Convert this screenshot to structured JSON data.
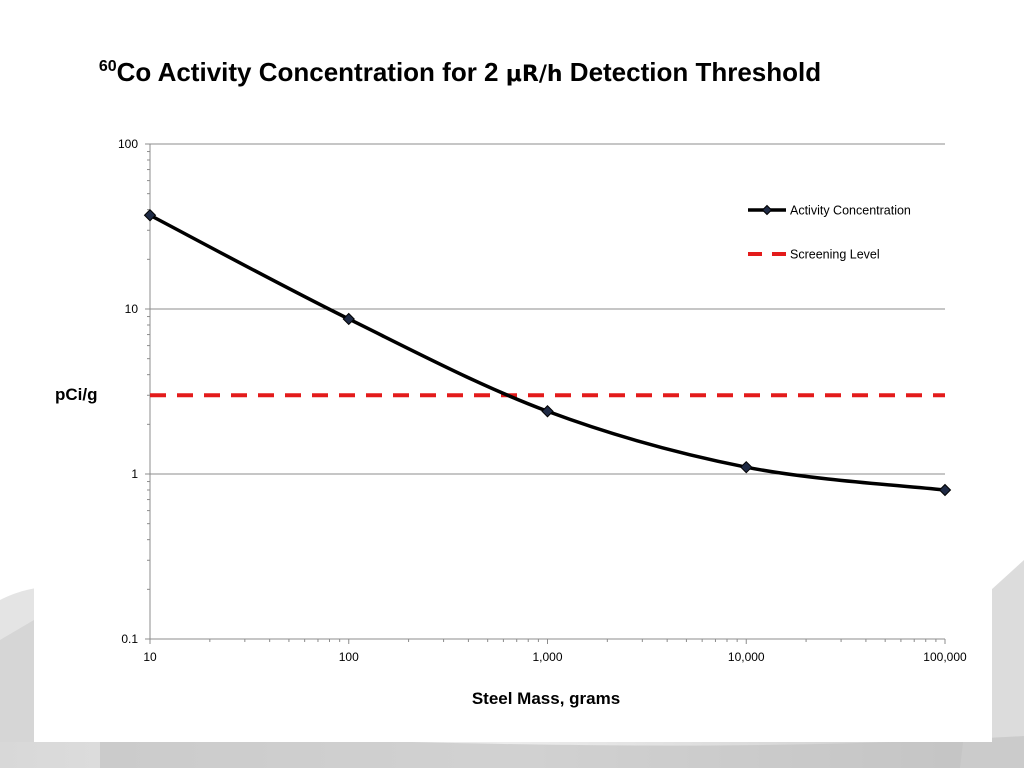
{
  "slide": {
    "title": {
      "isotope_mass_number": "60",
      "text_before_unit": "Co Activity Concentration for 2 ",
      "unit": "μR/h",
      "text_after_unit": " Detection Threshold"
    }
  },
  "chart_data": {
    "type": "line",
    "title": "60Co Activity Concentration for 2 μR/h Detection Threshold",
    "xlabel": "Steel Mass, grams",
    "ylabel": "pCi/g",
    "x_scale": "log",
    "y_scale": "log",
    "xlim": [
      10,
      100000
    ],
    "ylim": [
      0.1,
      100
    ],
    "x_ticks": [
      10,
      100,
      1000,
      10000,
      100000
    ],
    "x_tick_labels": [
      "10",
      "100",
      "1,000",
      "10,000",
      "100,000"
    ],
    "y_ticks": [
      0.1,
      1,
      10,
      100
    ],
    "y_tick_labels": [
      "0.1",
      "1",
      "10",
      "100"
    ],
    "grid": "horizontal major gridlines",
    "legend_position": "top-right",
    "series": [
      {
        "name": "Activity Concentration",
        "x": [
          10,
          100,
          1000,
          10000,
          100000
        ],
        "y": [
          37,
          8.7,
          2.4,
          1.1,
          0.8
        ],
        "color": "#000000",
        "line_style": "solid",
        "marker": "diamond",
        "marker_color": "#1f2a44"
      },
      {
        "name": "Screening Level",
        "x": [
          10,
          100000
        ],
        "y": [
          3,
          3
        ],
        "color": "#e31b1b",
        "line_style": "dashed"
      }
    ]
  }
}
